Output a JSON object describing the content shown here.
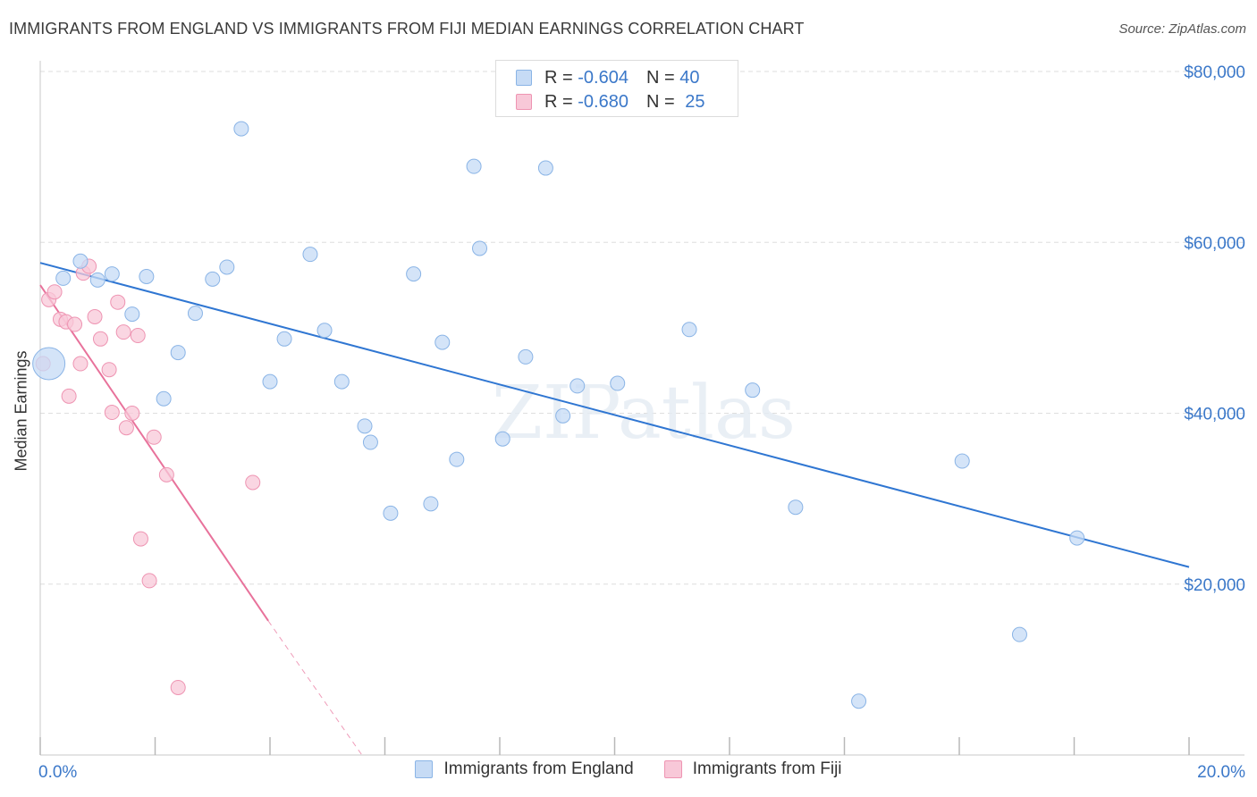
{
  "title": "IMMIGRANTS FROM ENGLAND VS IMMIGRANTS FROM FIJI MEDIAN EARNINGS CORRELATION CHART",
  "source": "Source: ZipAtlas.com",
  "colors": {
    "england_fill": "#c6dbf5",
    "england_stroke": "#8ab4e6",
    "england_line": "#2f76d2",
    "fiji_fill": "#f8c8d8",
    "fiji_stroke": "#ee94b2",
    "fiji_line": "#e8729b",
    "axis_text": "#3b78c9",
    "grid": "#dedede"
  },
  "legend": {
    "england": {
      "r_label": "R = ",
      "r_value": "-0.604",
      "n_label": "N = ",
      "n_value": "40"
    },
    "fiji": {
      "r_label": "R = ",
      "r_value": "-0.680",
      "n_label": "N = ",
      "n_value": "25"
    }
  },
  "chart_data": {
    "type": "scatter",
    "title": "IMMIGRANTS FROM ENGLAND VS IMMIGRANTS FROM FIJI MEDIAN EARNINGS CORRELATION CHART",
    "xlabel": "",
    "ylabel": "Median Earnings",
    "xlim": [
      0,
      20
    ],
    "ylim": [
      0,
      80000
    ],
    "x_tick_labels": [
      "0.0%",
      "20.0%"
    ],
    "y_ticks": [
      20000,
      40000,
      60000,
      80000
    ],
    "y_tick_labels": [
      "$20,000",
      "$40,000",
      "$60,000",
      "$80,000"
    ],
    "watermark": "ZIPatlas",
    "series": [
      {
        "name": "Immigrants from England",
        "r": -0.604,
        "n": 40,
        "trend": {
          "x": [
            0,
            20
          ],
          "y": [
            57600,
            22000
          ]
        },
        "points": [
          {
            "x": 0.15,
            "y": 45800,
            "big": true
          },
          {
            "x": 0.4,
            "y": 55800
          },
          {
            "x": 0.7,
            "y": 57800
          },
          {
            "x": 1.0,
            "y": 55600
          },
          {
            "x": 1.25,
            "y": 56300
          },
          {
            "x": 1.6,
            "y": 51600
          },
          {
            "x": 1.85,
            "y": 56000
          },
          {
            "x": 2.15,
            "y": 41700
          },
          {
            "x": 2.4,
            "y": 47100
          },
          {
            "x": 2.7,
            "y": 51700
          },
          {
            "x": 3.0,
            "y": 55700
          },
          {
            "x": 3.25,
            "y": 57100
          },
          {
            "x": 3.5,
            "y": 73300
          },
          {
            "x": 4.0,
            "y": 43700
          },
          {
            "x": 4.25,
            "y": 48700
          },
          {
            "x": 4.7,
            "y": 58600
          },
          {
            "x": 4.95,
            "y": 49700
          },
          {
            "x": 5.25,
            "y": 43700
          },
          {
            "x": 5.65,
            "y": 38500
          },
          {
            "x": 5.75,
            "y": 36600
          },
          {
            "x": 6.1,
            "y": 28300
          },
          {
            "x": 6.5,
            "y": 56300
          },
          {
            "x": 6.8,
            "y": 29400
          },
          {
            "x": 7.0,
            "y": 48300
          },
          {
            "x": 7.25,
            "y": 34600
          },
          {
            "x": 7.55,
            "y": 68900
          },
          {
            "x": 7.65,
            "y": 59300
          },
          {
            "x": 8.05,
            "y": 37000
          },
          {
            "x": 8.45,
            "y": 46600
          },
          {
            "x": 8.8,
            "y": 68700
          },
          {
            "x": 9.1,
            "y": 39700
          },
          {
            "x": 9.35,
            "y": 43200
          },
          {
            "x": 10.05,
            "y": 43500
          },
          {
            "x": 11.3,
            "y": 49800
          },
          {
            "x": 12.4,
            "y": 42700
          },
          {
            "x": 13.15,
            "y": 29000
          },
          {
            "x": 14.25,
            "y": 6300
          },
          {
            "x": 16.05,
            "y": 34400
          },
          {
            "x": 17.05,
            "y": 14100
          },
          {
            "x": 18.05,
            "y": 25400
          }
        ]
      },
      {
        "name": "Immigrants from Fiji",
        "r": -0.68,
        "n": 25,
        "trend": {
          "x": [
            0,
            3.97
          ],
          "y": [
            55000,
            15700
          ]
        },
        "trend_ext": {
          "x": [
            3.97,
            5.6
          ],
          "y": [
            15700,
            0
          ]
        },
        "points": [
          {
            "x": 0.05,
            "y": 45800
          },
          {
            "x": 0.15,
            "y": 53300
          },
          {
            "x": 0.25,
            "y": 54200
          },
          {
            "x": 0.35,
            "y": 51000
          },
          {
            "x": 0.45,
            "y": 50700
          },
          {
            "x": 0.5,
            "y": 42000
          },
          {
            "x": 0.6,
            "y": 50400
          },
          {
            "x": 0.7,
            "y": 45800
          },
          {
            "x": 0.75,
            "y": 56400
          },
          {
            "x": 0.85,
            "y": 57200
          },
          {
            "x": 0.95,
            "y": 51300
          },
          {
            "x": 1.05,
            "y": 48700
          },
          {
            "x": 1.2,
            "y": 45100
          },
          {
            "x": 1.25,
            "y": 40100
          },
          {
            "x": 1.35,
            "y": 53000
          },
          {
            "x": 1.45,
            "y": 49500
          },
          {
            "x": 1.5,
            "y": 38300
          },
          {
            "x": 1.6,
            "y": 40000
          },
          {
            "x": 1.7,
            "y": 49100
          },
          {
            "x": 1.75,
            "y": 25300
          },
          {
            "x": 1.9,
            "y": 20400
          },
          {
            "x": 1.98,
            "y": 37200
          },
          {
            "x": 2.2,
            "y": 32800
          },
          {
            "x": 2.4,
            "y": 7900
          },
          {
            "x": 3.7,
            "y": 31900
          }
        ]
      }
    ]
  },
  "bottom_legend": {
    "england_label": "Immigrants from England",
    "fiji_label": "Immigrants from Fiji"
  }
}
